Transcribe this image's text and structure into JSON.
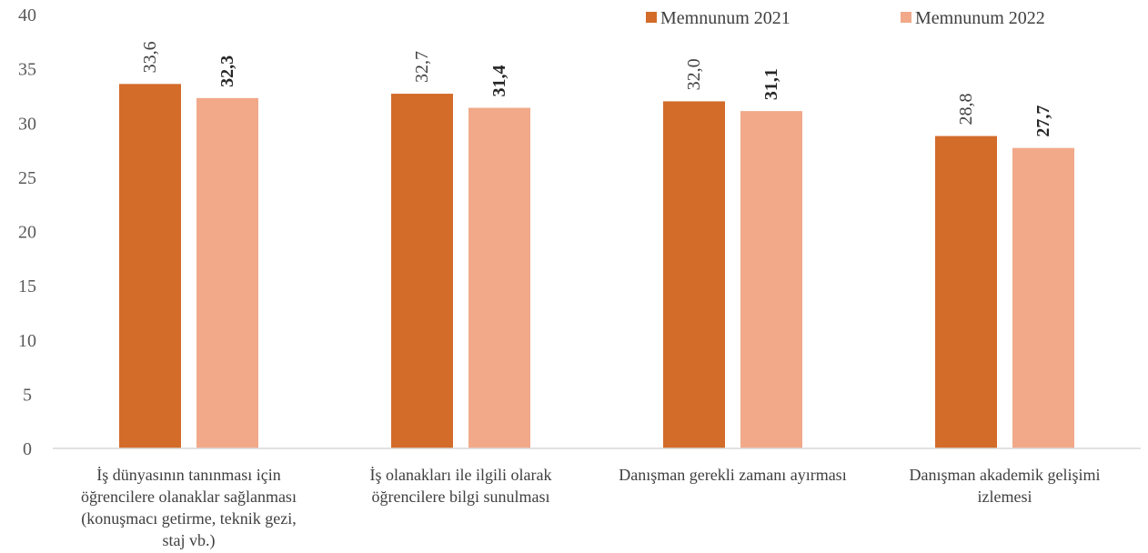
{
  "chart_data": {
    "type": "bar",
    "title": "",
    "xlabel": "",
    "ylabel": "",
    "ylim": [
      0,
      40
    ],
    "yticks": [
      0,
      5,
      10,
      15,
      20,
      25,
      30,
      35,
      40
    ],
    "grid": false,
    "legend_position": "top-right",
    "categories": [
      [
        "İş dünyasının tanınması için",
        "öğrencilere olanaklar sağlanması",
        "(konuşmacı getirme, teknik gezi,",
        "staj vb.)"
      ],
      [
        "İş olanakları ile ilgili olarak",
        "öğrencilere bilgi sunulması"
      ],
      [
        "Danışman gerekli zamanı ayırması"
      ],
      [
        "Danışman akademik gelişimi",
        "izlemesi"
      ]
    ],
    "series": [
      {
        "name": "Memnunum 2021",
        "color": "#D36B29",
        "values": [
          33.6,
          32.7,
          32.0,
          28.8
        ],
        "labels": [
          "33,6",
          "32,7",
          "32,0",
          "28,8"
        ],
        "label_bold": false
      },
      {
        "name": "Memnunum 2022",
        "color": "#F1A98A",
        "values": [
          32.3,
          31.4,
          31.1,
          27.7
        ],
        "labels": [
          "32,3",
          "31,4",
          "31,1",
          "27,7"
        ],
        "label_bold": true
      }
    ]
  }
}
